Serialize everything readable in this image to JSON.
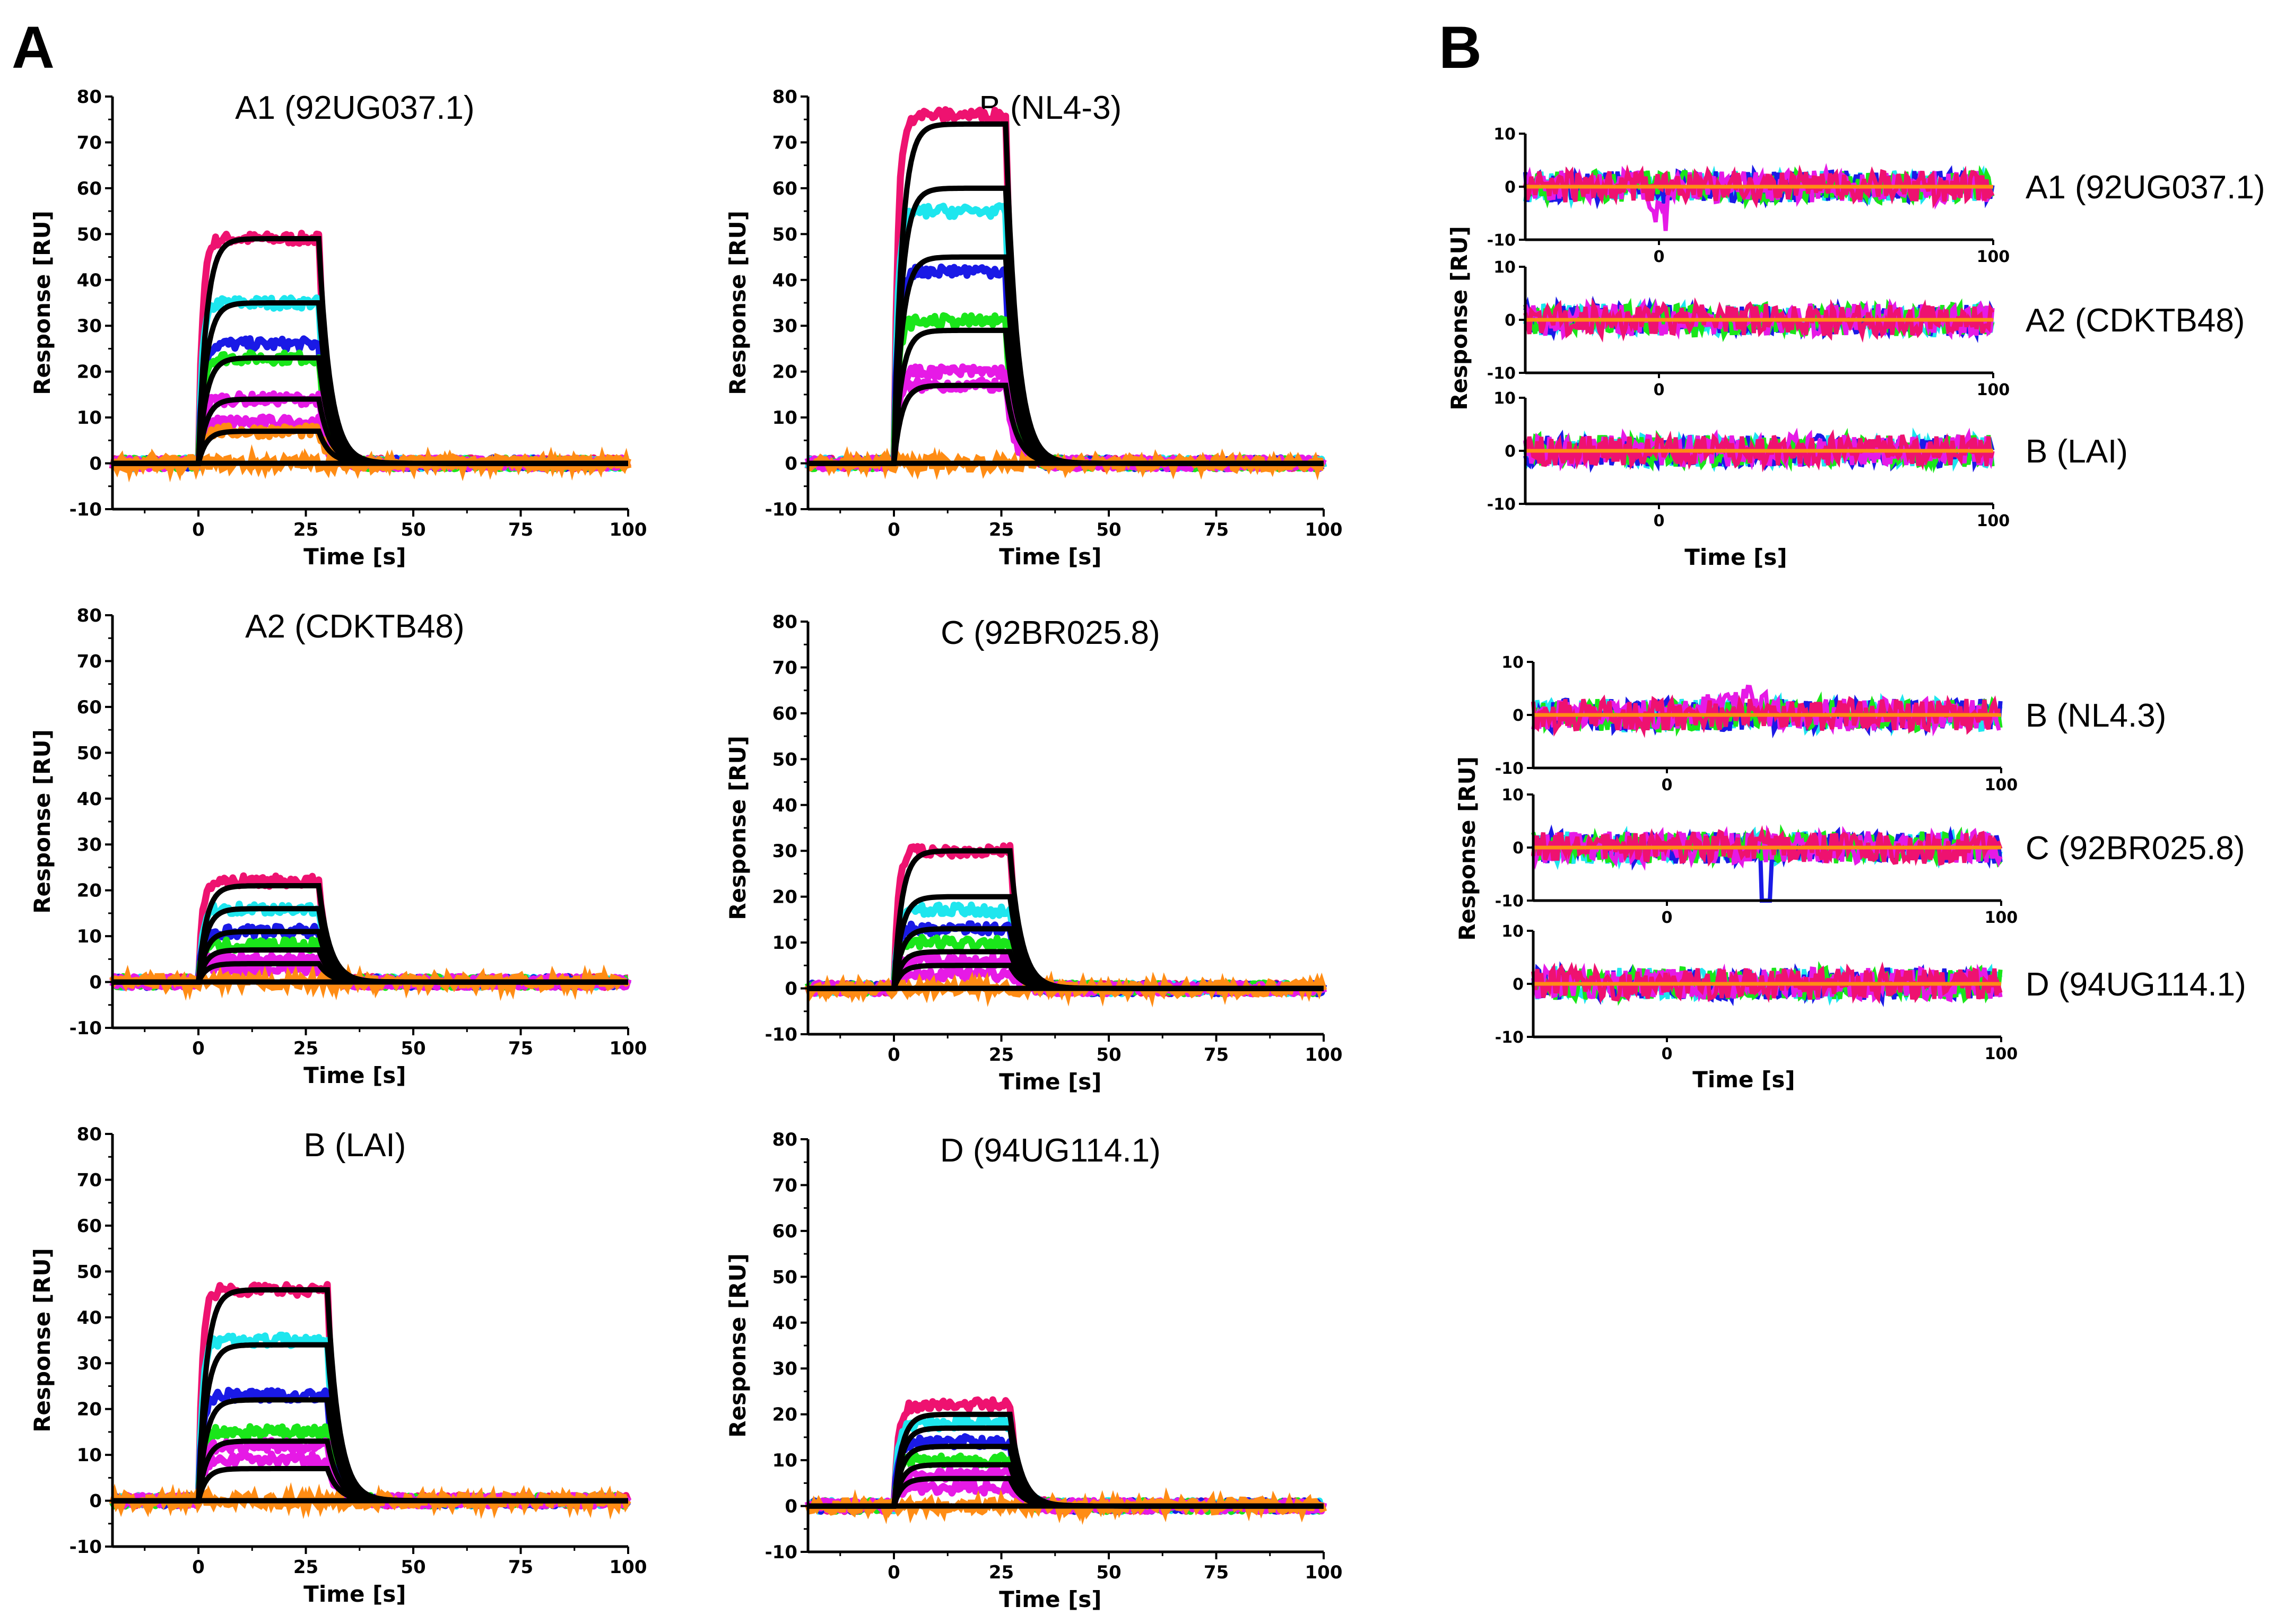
{
  "figure": {
    "panel_labels": [
      "A",
      "B"
    ],
    "colors": {
      "fit": "#000000",
      "crimson": "#ee1270",
      "cyan": "#1ee6ee",
      "blue": "#1a1ae6",
      "green": "#1ae61a",
      "magenta": "#e61ae6",
      "orange": "#ff8c14"
    }
  },
  "chart_data": [
    {
      "id": "A1",
      "type": "line",
      "title": "A1 (92UG037.1)",
      "xlabel": "Time [s]",
      "ylabel": "Response [RU]",
      "xlim": [
        -20,
        100
      ],
      "ylim": [
        -10,
        80
      ],
      "xticks": [
        0,
        25,
        50,
        75,
        100
      ],
      "yticks": [
        -10,
        0,
        10,
        20,
        30,
        40,
        50,
        60,
        70,
        80
      ],
      "plateaus": [
        49,
        35,
        26,
        23,
        14,
        9,
        7
      ],
      "fit_plateaus": [
        49,
        35,
        23,
        14,
        7
      ],
      "injection": [
        0,
        28
      ]
    },
    {
      "id": "B_NL43",
      "type": "line",
      "title": "B (NL4-3)",
      "xlabel": "Time [s]",
      "ylabel": "Response [RU]",
      "xlim": [
        -20,
        100
      ],
      "ylim": [
        -10,
        80
      ],
      "xticks": [
        0,
        25,
        50,
        75,
        100
      ],
      "yticks": [
        -10,
        0,
        10,
        20,
        30,
        40,
        50,
        60,
        70,
        80
      ],
      "plateaus": [
        76,
        55,
        42,
        31,
        20,
        17
      ],
      "fit_plateaus": [
        74,
        60,
        45,
        29,
        17
      ],
      "injection": [
        0,
        26
      ]
    },
    {
      "id": "A2",
      "type": "line",
      "title": "A2 (CDKTB48)",
      "xlabel": "Time [s]",
      "ylabel": "Response [RU]",
      "xlim": [
        -20,
        100
      ],
      "ylim": [
        -10,
        80
      ],
      "xticks": [
        0,
        25,
        50,
        75,
        100
      ],
      "yticks": [
        -10,
        0,
        10,
        20,
        30,
        40,
        50,
        60,
        70,
        80
      ],
      "plateaus": [
        22,
        16,
        11,
        8,
        5,
        3
      ],
      "fit_plateaus": [
        21,
        16,
        11,
        7,
        4
      ],
      "injection": [
        0,
        28
      ]
    },
    {
      "id": "C",
      "type": "line",
      "title": "C (92BR025.8)",
      "xlabel": "Time [s]",
      "ylabel": "Response [RU]",
      "xlim": [
        -20,
        100
      ],
      "ylim": [
        -10,
        80
      ],
      "xticks": [
        0,
        25,
        50,
        75,
        100
      ],
      "yticks": [
        -10,
        0,
        10,
        20,
        30,
        40,
        50,
        60,
        70,
        80
      ],
      "plateaus": [
        30,
        17,
        13,
        10,
        6,
        3
      ],
      "fit_plateaus": [
        30,
        20,
        13,
        8,
        5
      ],
      "injection": [
        0,
        27
      ]
    },
    {
      "id": "B_LAI",
      "type": "line",
      "title": "B (LAI)",
      "xlabel": "Time [s]",
      "ylabel": "Response [RU]",
      "xlim": [
        -20,
        100
      ],
      "ylim": [
        -10,
        80
      ],
      "xticks": [
        0,
        25,
        50,
        75,
        100
      ],
      "yticks": [
        -10,
        0,
        10,
        20,
        30,
        40,
        50,
        60,
        70,
        80
      ],
      "plateaus": [
        46,
        35,
        23,
        15,
        12,
        9
      ],
      "fit_plateaus": [
        46,
        34,
        22,
        13,
        7
      ],
      "injection": [
        0,
        30
      ]
    },
    {
      "id": "D",
      "type": "line",
      "title": "D (94UG114.1)",
      "xlabel": "Time [s]",
      "ylabel": "Response [RU]",
      "xlim": [
        -20,
        100
      ],
      "ylim": [
        -10,
        80
      ],
      "xticks": [
        0,
        25,
        50,
        75,
        100
      ],
      "yticks": [
        -10,
        0,
        10,
        20,
        30,
        40,
        50,
        60,
        70,
        80
      ],
      "plateaus": [
        22,
        18,
        14,
        10,
        7,
        4
      ],
      "fit_plateaus": [
        20,
        17,
        13,
        9,
        6
      ],
      "injection": [
        0,
        27
      ]
    }
  ],
  "residuals": {
    "ylabel": "Response [RU]",
    "xlabel": "Time [s]",
    "xlim": [
      -40,
      100
    ],
    "ylim": [
      -10,
      10
    ],
    "xticks": [
      0,
      100
    ],
    "yticks": [
      -10,
      0,
      10
    ],
    "group1": [
      "A1 (92UG037.1)",
      "A2 (CDKTB48)",
      "B (LAI)"
    ],
    "group2": [
      "B (NL4.3)",
      "C (92BR025.8)",
      "D (94UG114.1)"
    ]
  }
}
